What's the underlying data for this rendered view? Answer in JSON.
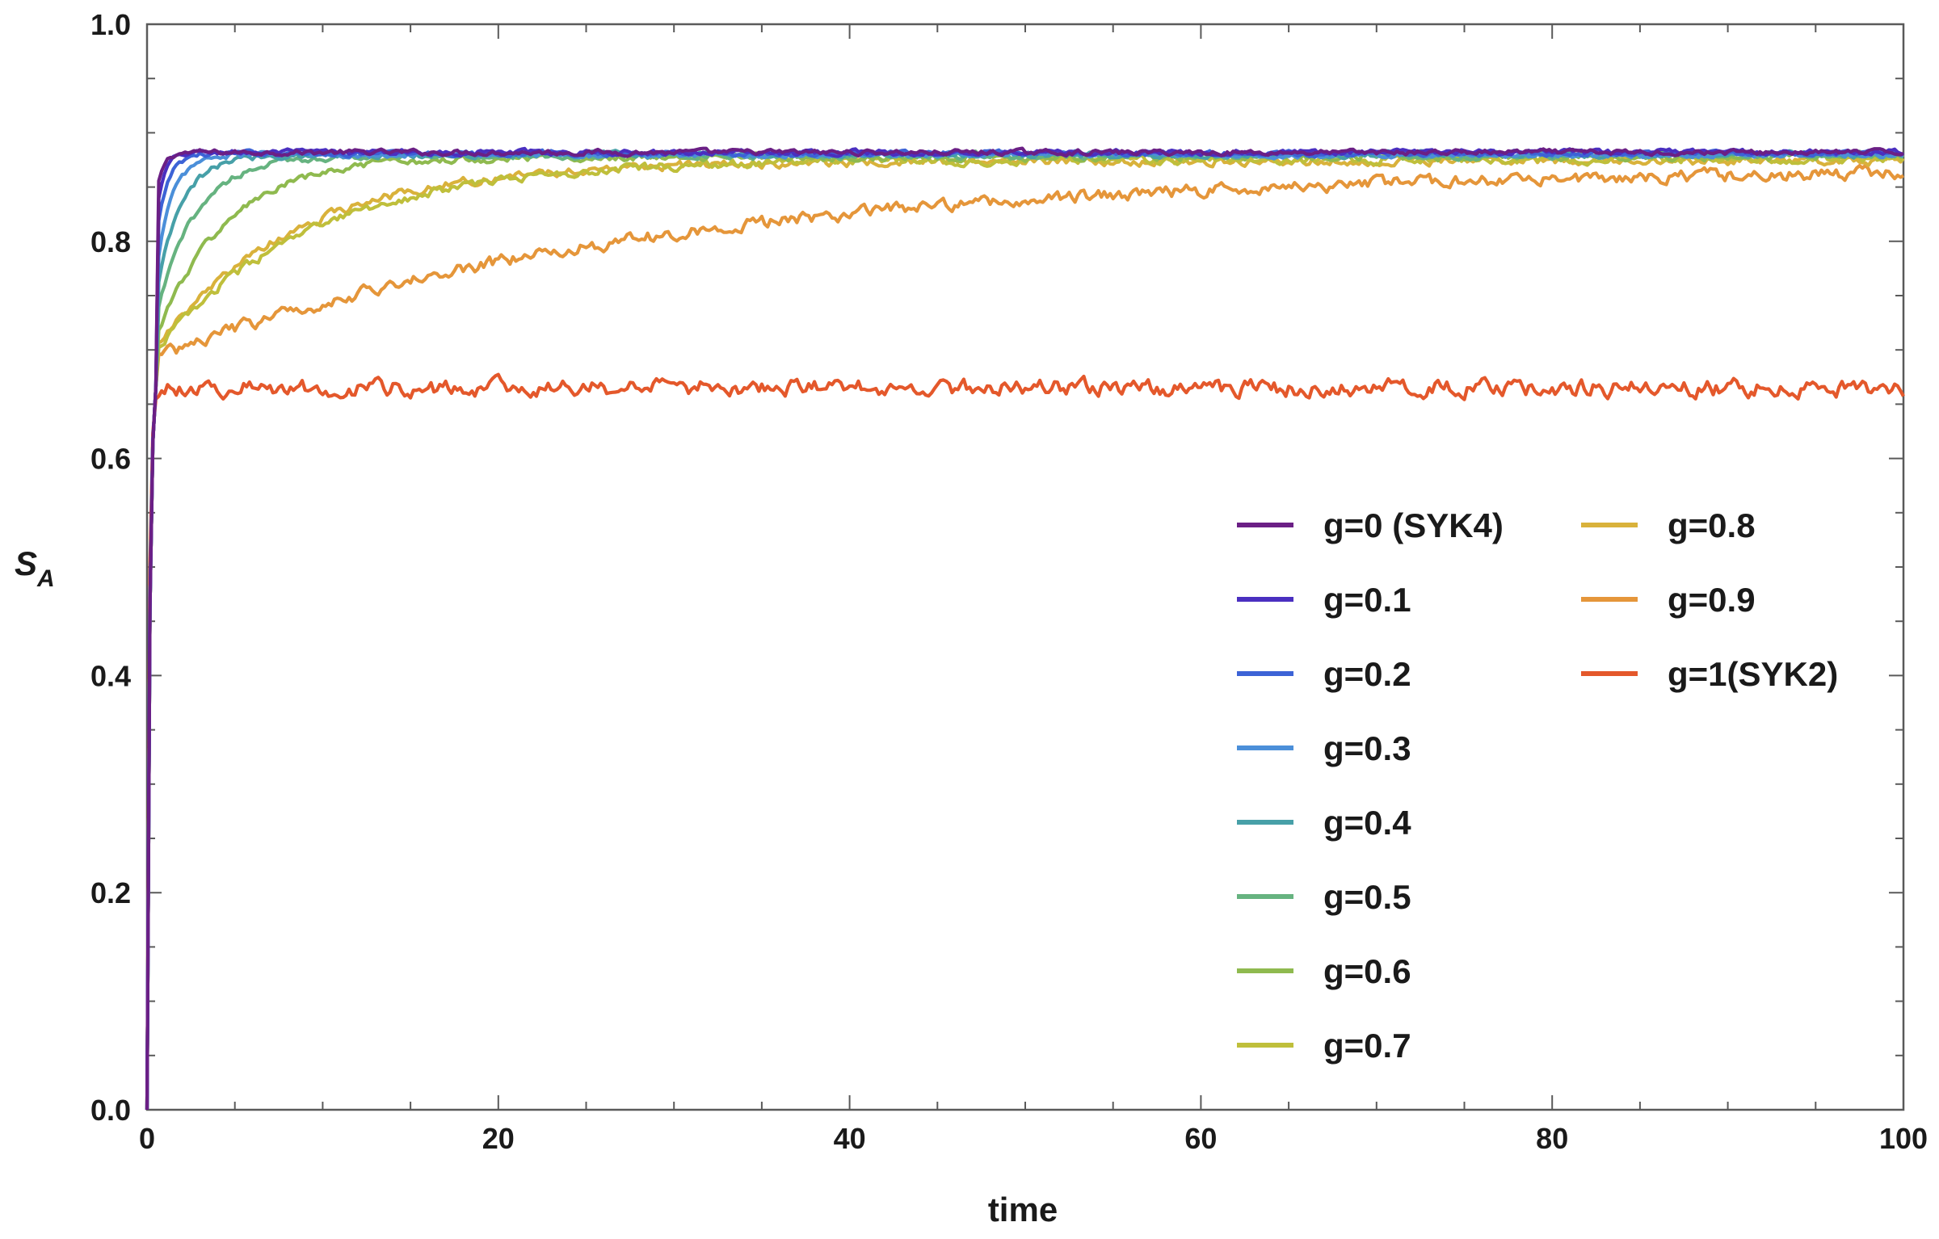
{
  "chart_data": {
    "type": "line",
    "xlabel": "time",
    "ylabel": {
      "main": "S",
      "sub": "A"
    },
    "xlim": [
      0,
      100
    ],
    "ylim": [
      0.0,
      1.0
    ],
    "x_ticks": [
      0,
      20,
      40,
      60,
      80,
      100
    ],
    "x_tick_labels": [
      "0",
      "20",
      "40",
      "60",
      "80",
      "100"
    ],
    "y_ticks": [
      0.0,
      0.2,
      0.4,
      0.6,
      0.8,
      1.0
    ],
    "y_tick_labels": [
      "0.0",
      "0.2",
      "0.4",
      "0.6",
      "0.8",
      "1.0"
    ],
    "grid": false,
    "legend_placement": "right, two columns",
    "series": [
      {
        "name": "g=0 (SYK4)",
        "color": "#6b1f85",
        "saturation": 0.882,
        "tau": 0.35,
        "noise": 0.0025
      },
      {
        "name": "g=0.1",
        "color": "#4a2fc0",
        "saturation": 0.882,
        "tau": 0.45,
        "noise": 0.0025
      },
      {
        "name": "g=0.2",
        "color": "#3c63d6",
        "saturation": 0.881,
        "tau": 0.6,
        "noise": 0.0025
      },
      {
        "name": "g=0.3",
        "color": "#4b8fd9",
        "saturation": 0.88,
        "tau": 0.9,
        "noise": 0.0028
      },
      {
        "name": "g=0.4",
        "color": "#47a0a8",
        "saturation": 0.88,
        "tau": 1.4,
        "noise": 0.003
      },
      {
        "name": "g=0.5",
        "color": "#66b380",
        "saturation": 0.879,
        "tau": 2.2,
        "noise": 0.003
      },
      {
        "name": "g=0.6",
        "color": "#8fba4f",
        "saturation": 0.878,
        "tau": 4.0,
        "noise": 0.0035
      },
      {
        "name": "g=0.7",
        "color": "#bfbf3b",
        "saturation": 0.876,
        "tau": 9.0,
        "noise": 0.004
      },
      {
        "name": "g=0.8",
        "color": "#d9b23b",
        "saturation": 0.874,
        "tau": 8.0,
        "noise": 0.004
      },
      {
        "name": "g=0.9",
        "color": "#e5963a",
        "saturation": 0.868,
        "tau": 28.0,
        "noise": 0.006
      },
      {
        "name": "g=1(SYK2)",
        "color": "#e4582b",
        "saturation": 0.665,
        "tau": 0.12,
        "noise": 0.009
      }
    ]
  }
}
